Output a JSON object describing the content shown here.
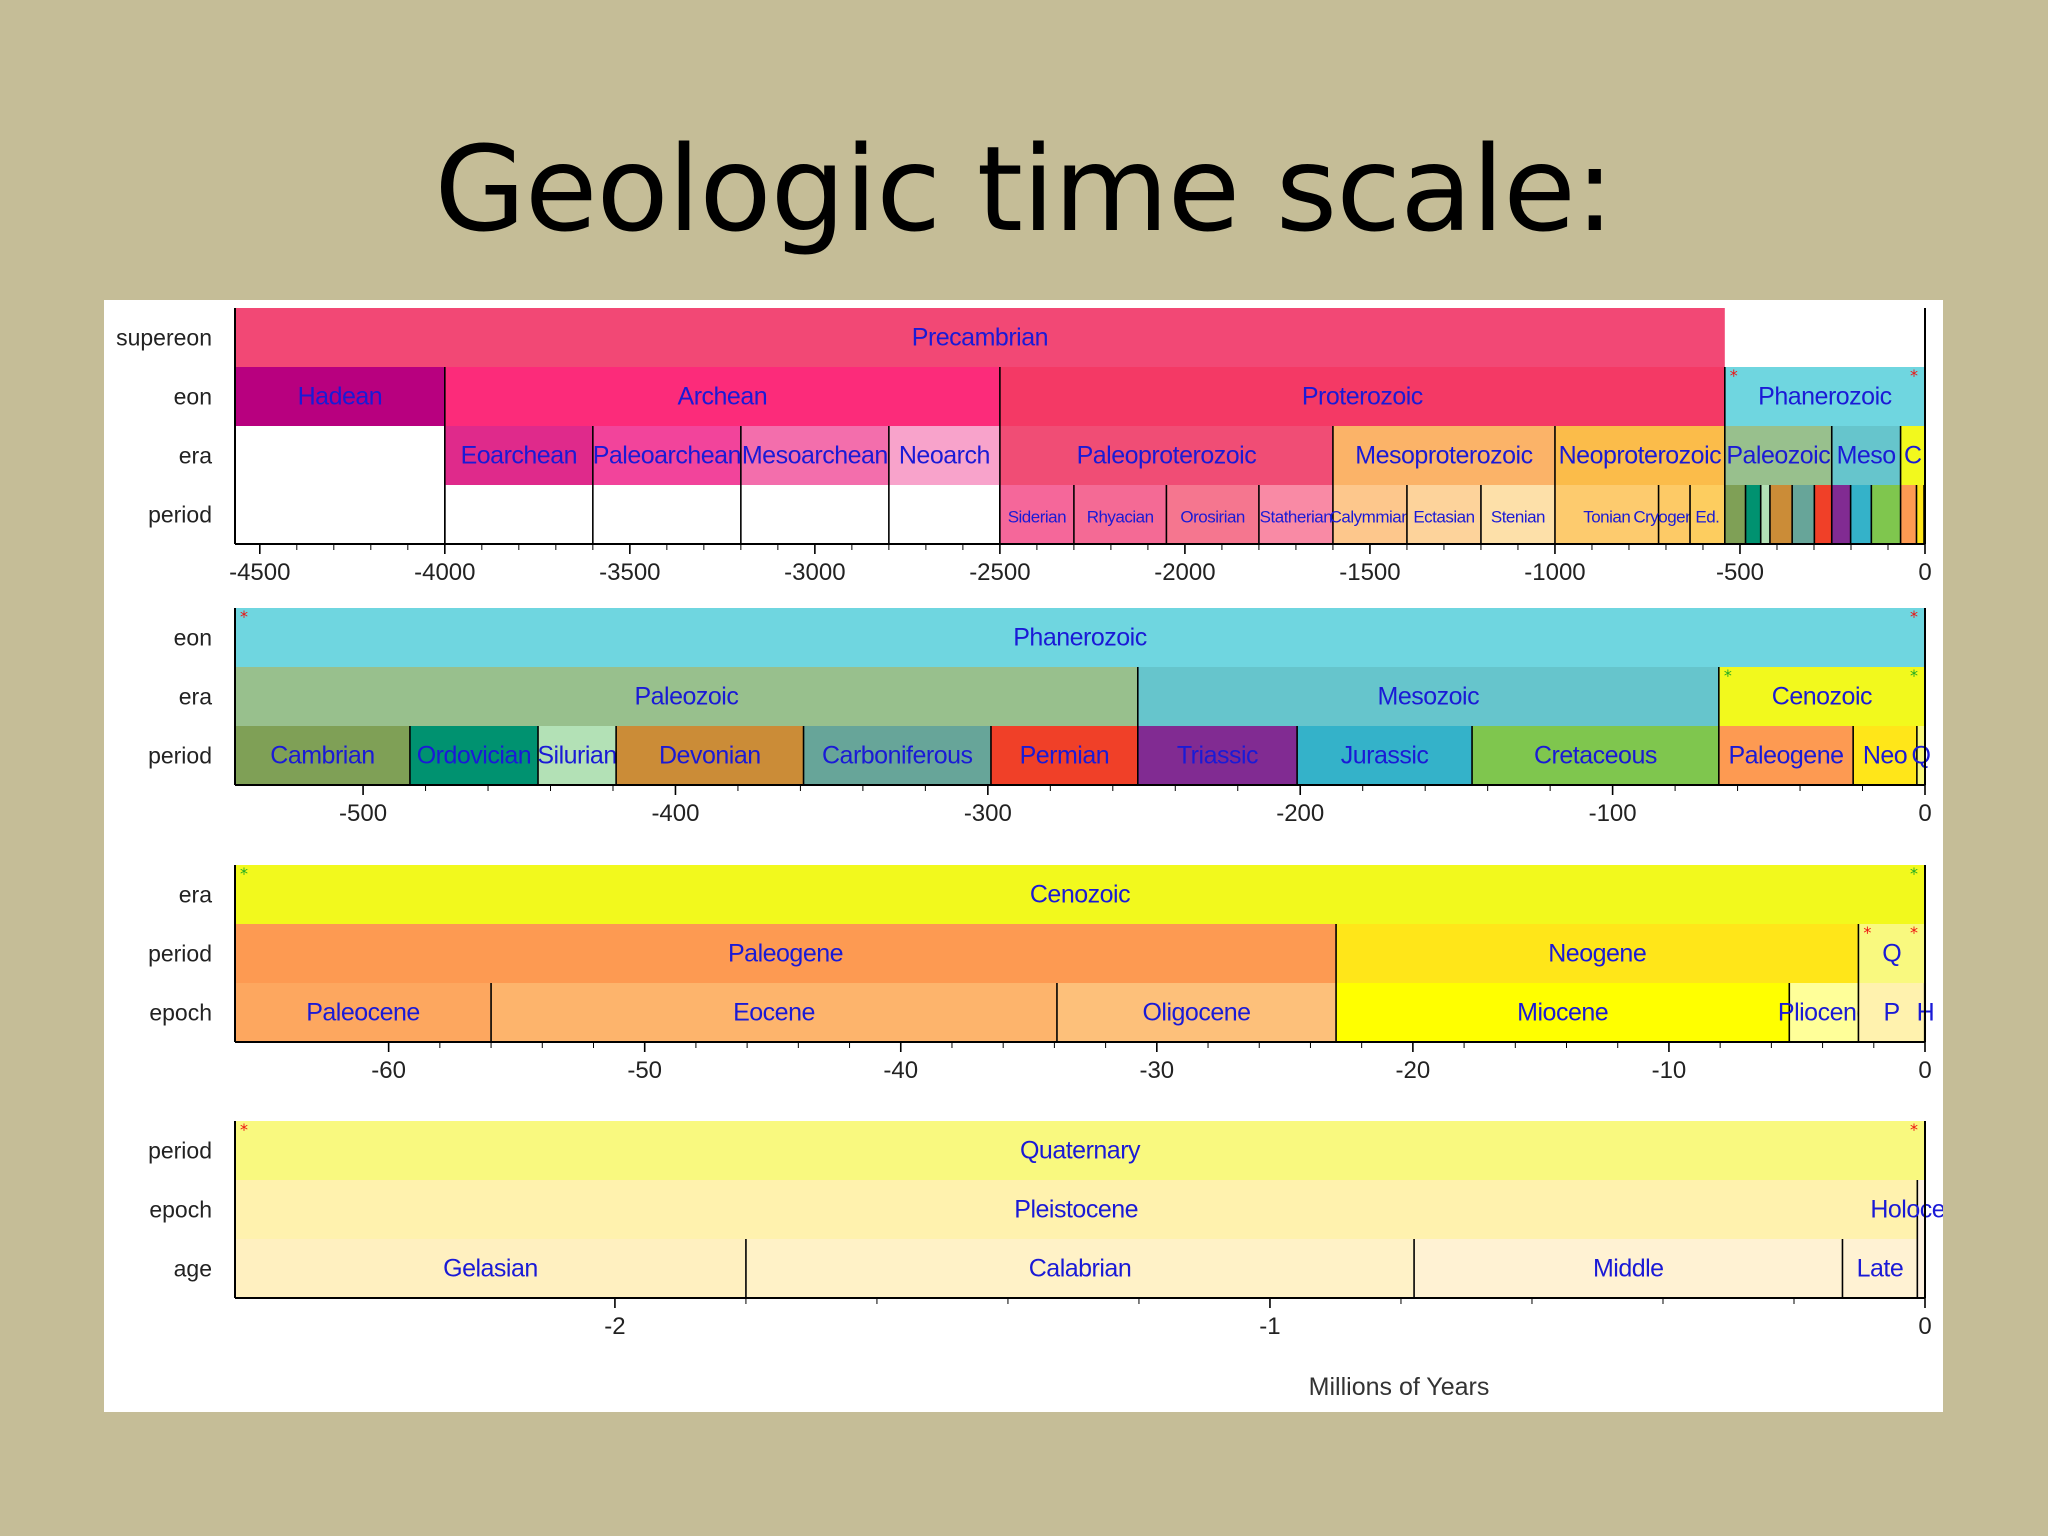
{
  "title": "Geologic time scale:",
  "colors": {
    "label_text": "#1a1ad6",
    "star_red": "#e11",
    "star_green": "#2a2"
  },
  "chart_data": {
    "type": "timeline",
    "xlabel": "Millions of Years",
    "panels": [
      {
        "domain": [
          -4567,
          0
        ],
        "ticks": [
          -4500,
          -4000,
          -3500,
          -3000,
          -2500,
          -2000,
          -1500,
          -1000,
          -500,
          0
        ],
        "row_labels": [
          "supereon",
          "eon",
          "era",
          "period"
        ],
        "bands": [
          {
            "row": 0,
            "start": -4567,
            "end": -541,
            "label": "Precambrian",
            "color": "#f24875"
          },
          {
            "row": 1,
            "start": -4567,
            "end": -4000,
            "label": "Hadean",
            "color": "#b8007f"
          },
          {
            "row": 1,
            "start": -4000,
            "end": -2500,
            "label": "Archean",
            "color": "#fc2b7a"
          },
          {
            "row": 1,
            "start": -2500,
            "end": -541,
            "label": "Proterozoic",
            "color": "#f43965"
          },
          {
            "row": 1,
            "start": -541,
            "end": 0,
            "label": "Phanerozoic",
            "color": "#6fd6e0",
            "stars": "red"
          },
          {
            "row": 2,
            "start": -4000,
            "end": -3600,
            "label": "Eoarchean",
            "color": "#df2a8b"
          },
          {
            "row": 2,
            "start": -3600,
            "end": -3200,
            "label": "Paleoarchean",
            "color": "#f2449b"
          },
          {
            "row": 2,
            "start": -3200,
            "end": -2800,
            "label": "Mesoarchean",
            "color": "#f36eac"
          },
          {
            "row": 2,
            "start": -2800,
            "end": -2500,
            "label": "Neoarch",
            "color": "#f8a3cb"
          },
          {
            "row": 2,
            "start": -2500,
            "end": -1600,
            "label": "Paleoproterozoic",
            "color": "#f04d75"
          },
          {
            "row": 2,
            "start": -1600,
            "end": -1000,
            "label": "Mesoproterozoic",
            "color": "#fbb368"
          },
          {
            "row": 2,
            "start": -1000,
            "end": -541,
            "label": "Neoproterozoic",
            "color": "#fbbc4a"
          },
          {
            "row": 2,
            "start": -541,
            "end": -252,
            "label": "Paleozoic",
            "color": "#98c08d"
          },
          {
            "row": 2,
            "start": -252,
            "end": -66,
            "label": "Meso",
            "color": "#66c5cc"
          },
          {
            "row": 2,
            "start": -66,
            "end": 0,
            "label": "C",
            "color": "#f2f91d"
          },
          {
            "row": 3,
            "start": -2500,
            "end": -2300,
            "label": "Siderian",
            "color": "#f5679a"
          },
          {
            "row": 3,
            "start": -2300,
            "end": -2050,
            "label": "Rhyacian",
            "color": "#f46a95"
          },
          {
            "row": 3,
            "start": -2050,
            "end": -1800,
            "label": "Orosirian",
            "color": "#f5768f"
          },
          {
            "row": 3,
            "start": -1800,
            "end": -1600,
            "label": "Statherian",
            "color": "#f98aa5"
          },
          {
            "row": 3,
            "start": -1600,
            "end": -1400,
            "label": "Calymmian",
            "color": "#fdc78c"
          },
          {
            "row": 3,
            "start": -1400,
            "end": -1200,
            "label": "Ectasian",
            "color": "#fdd39b"
          },
          {
            "row": 3,
            "start": -1200,
            "end": -1000,
            "label": "Stenian",
            "color": "#fde0a9"
          },
          {
            "row": 3,
            "start": -1000,
            "end": -720,
            "label": "Tonian",
            "color": "#fdcb6e"
          },
          {
            "row": 3,
            "start": -720,
            "end": -635,
            "label": "Cryogenian",
            "color": "#fdca66"
          },
          {
            "row": 3,
            "start": -635,
            "end": -541,
            "label": "Ed.",
            "color": "#fdcd5f"
          },
          {
            "row": 3,
            "start": -541,
            "end": -485,
            "label": "",
            "color": "#7fa056"
          },
          {
            "row": 3,
            "start": -485,
            "end": -444,
            "label": "",
            "color": "#009270"
          },
          {
            "row": 3,
            "start": -444,
            "end": -419,
            "label": "",
            "color": "#b3e1b6"
          },
          {
            "row": 3,
            "start": -419,
            "end": -359,
            "label": "",
            "color": "#cb8c37"
          },
          {
            "row": 3,
            "start": -359,
            "end": -299,
            "label": "",
            "color": "#67a599"
          },
          {
            "row": 3,
            "start": -299,
            "end": -252,
            "label": "",
            "color": "#f04028"
          },
          {
            "row": 3,
            "start": -252,
            "end": -201,
            "label": "",
            "color": "#812b92"
          },
          {
            "row": 3,
            "start": -201,
            "end": -145,
            "label": "",
            "color": "#34b2c9"
          },
          {
            "row": 3,
            "start": -145,
            "end": -66,
            "label": "",
            "color": "#7fc64e"
          },
          {
            "row": 3,
            "start": -66,
            "end": -23,
            "label": "",
            "color": "#fd9a52"
          },
          {
            "row": 3,
            "start": -23,
            "end": -2.6,
            "label": "",
            "color": "#ffe619"
          },
          {
            "row": 3,
            "start": -2.6,
            "end": 0,
            "label": "",
            "color": "#f9f97f"
          }
        ]
      },
      {
        "domain": [
          -541,
          0
        ],
        "ticks": [
          -500,
          -400,
          -300,
          -200,
          -100,
          0
        ],
        "row_labels": [
          "eon",
          "era",
          "period"
        ],
        "bands": [
          {
            "row": 0,
            "start": -541,
            "end": 0,
            "label": "Phanerozoic",
            "color": "#6fd6e0",
            "stars": "red"
          },
          {
            "row": 1,
            "start": -541,
            "end": -252,
            "label": "Paleozoic",
            "color": "#98c08d"
          },
          {
            "row": 1,
            "start": -252,
            "end": -66,
            "label": "Mesozoic",
            "color": "#66c5cc"
          },
          {
            "row": 1,
            "start": -66,
            "end": 0,
            "label": "Cenozoic",
            "color": "#f2f91d",
            "stars": "green"
          },
          {
            "row": 2,
            "start": -541,
            "end": -485,
            "label": "Cambrian",
            "color": "#7fa056"
          },
          {
            "row": 2,
            "start": -485,
            "end": -444,
            "label": "Ordovician",
            "color": "#009270"
          },
          {
            "row": 2,
            "start": -444,
            "end": -419,
            "label": "Silurian",
            "color": "#b3e1b6"
          },
          {
            "row": 2,
            "start": -419,
            "end": -359,
            "label": "Devonian",
            "color": "#cb8c37"
          },
          {
            "row": 2,
            "start": -359,
            "end": -299,
            "label": "Carboniferous",
            "color": "#67a599"
          },
          {
            "row": 2,
            "start": -299,
            "end": -252,
            "label": "Permian",
            "color": "#f04028"
          },
          {
            "row": 2,
            "start": -252,
            "end": -201,
            "label": "Triassic",
            "color": "#812b92"
          },
          {
            "row": 2,
            "start": -201,
            "end": -145,
            "label": "Jurassic",
            "color": "#34b2c9"
          },
          {
            "row": 2,
            "start": -145,
            "end": -66,
            "label": "Cretaceous",
            "color": "#7fc64e"
          },
          {
            "row": 2,
            "start": -66,
            "end": -23,
            "label": "Paleogene",
            "color": "#fd9a52"
          },
          {
            "row": 2,
            "start": -23,
            "end": -2.6,
            "label": "Neo",
            "color": "#ffe619"
          },
          {
            "row": 2,
            "start": -2.6,
            "end": 0,
            "label": "Q",
            "color": "#f9f97f"
          }
        ]
      },
      {
        "domain": [
          -66,
          0
        ],
        "ticks": [
          -60,
          -50,
          -40,
          -30,
          -20,
          -10,
          0
        ],
        "row_labels": [
          "era",
          "period",
          "epoch"
        ],
        "bands": [
          {
            "row": 0,
            "start": -66,
            "end": 0,
            "label": "Cenozoic",
            "color": "#f2f91d",
            "stars": "green"
          },
          {
            "row": 1,
            "start": -66,
            "end": -23,
            "label": "Paleogene",
            "color": "#fd9a52"
          },
          {
            "row": 1,
            "start": -23,
            "end": -2.6,
            "label": "Neogene",
            "color": "#ffe619"
          },
          {
            "row": 1,
            "start": -2.6,
            "end": 0,
            "label": "Q",
            "color": "#f9f97f",
            "stars": "red"
          },
          {
            "row": 2,
            "start": -66,
            "end": -56,
            "label": "Paleocene",
            "color": "#fda75f"
          },
          {
            "row": 2,
            "start": -56,
            "end": -33.9,
            "label": "Eocene",
            "color": "#fdb46c"
          },
          {
            "row": 2,
            "start": -33.9,
            "end": -23,
            "label": "Oligocene",
            "color": "#fdc07a"
          },
          {
            "row": 2,
            "start": -23,
            "end": -5.3,
            "label": "Miocene",
            "color": "#ffff00"
          },
          {
            "row": 2,
            "start": -5.3,
            "end": -2.6,
            "label": "Pliocene",
            "color": "#ffff99"
          },
          {
            "row": 2,
            "start": -2.6,
            "end": -0.0117,
            "label": "P",
            "color": "#fff2ae"
          },
          {
            "row": 2,
            "start": -0.0117,
            "end": 0,
            "label": "H",
            "color": "#fef2e0"
          }
        ]
      },
      {
        "domain": [
          -2.58,
          0
        ],
        "ticks": [
          -2,
          -1,
          0
        ],
        "row_labels": [
          "period",
          "epoch",
          "age"
        ],
        "bands": [
          {
            "row": 0,
            "start": -2.58,
            "end": 0,
            "label": "Quaternary",
            "color": "#f9f97f",
            "stars": "red"
          },
          {
            "row": 1,
            "start": -2.58,
            "end": -0.0117,
            "label": "Pleistocene",
            "color": "#fff2ae"
          },
          {
            "row": 1,
            "start": -0.0117,
            "end": 0,
            "label": "Holocene",
            "color": "#fef2e0"
          },
          {
            "row": 2,
            "start": -2.58,
            "end": -1.8,
            "label": "Gelasian",
            "color": "#fff0c0"
          },
          {
            "row": 2,
            "start": -1.8,
            "end": -0.78,
            "label": "Calabrian",
            "color": "#fff2c7"
          },
          {
            "row": 2,
            "start": -0.78,
            "end": -0.126,
            "label": "Middle",
            "color": "#fff2d3"
          },
          {
            "row": 2,
            "start": -0.126,
            "end": -0.0117,
            "label": "Late",
            "color": "#fff2d3"
          },
          {
            "row": 2,
            "start": -0.0117,
            "end": 0,
            "label": "",
            "color": "#fef2e0"
          }
        ]
      }
    ]
  }
}
